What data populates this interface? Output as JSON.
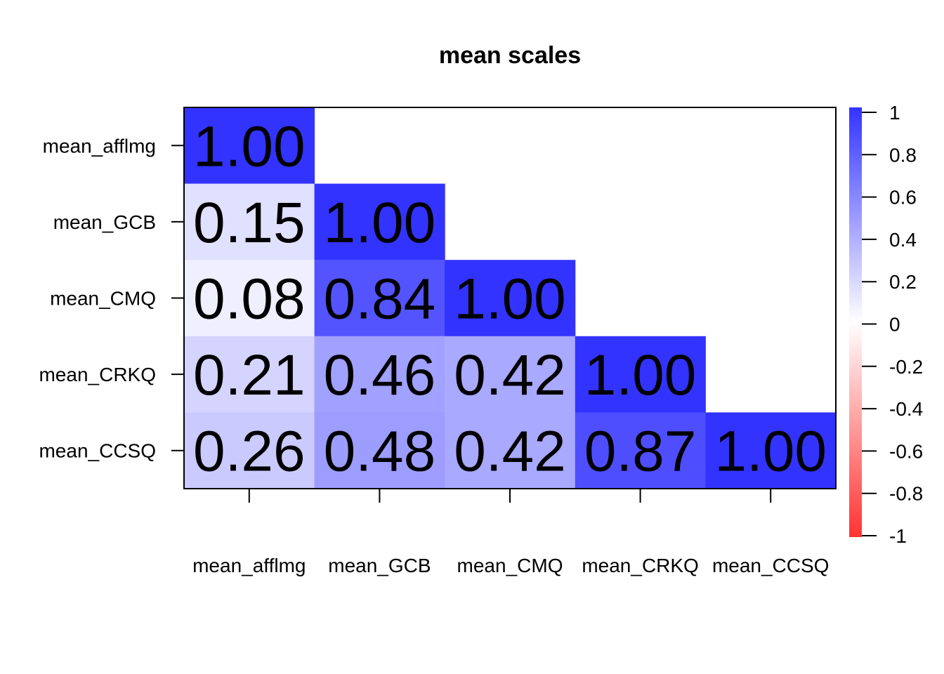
{
  "chart_data": {
    "type": "heatmap",
    "title": "mean scales",
    "variables": [
      "mean_afflmg",
      "mean_GCB",
      "mean_CMQ",
      "mean_CRKQ",
      "mean_CCSQ"
    ],
    "matrix": [
      [
        1.0,
        null,
        null,
        null,
        null
      ],
      [
        0.15,
        1.0,
        null,
        null,
        null
      ],
      [
        0.08,
        0.84,
        1.0,
        null,
        null
      ],
      [
        0.21,
        0.46,
        0.42,
        1.0,
        null
      ],
      [
        0.26,
        0.48,
        0.42,
        0.87,
        1.0
      ]
    ],
    "labels": [
      [
        "1.00",
        "",
        "",
        "",
        ""
      ],
      [
        "0.15",
        "1.00",
        "",
        "",
        ""
      ],
      [
        "0.08",
        "0.84",
        "1.00",
        "",
        ""
      ],
      [
        "0.21",
        "0.46",
        "0.42",
        "1.00",
        ""
      ],
      [
        "0.26",
        "0.48",
        "0.42",
        "0.87",
        "1.00"
      ]
    ],
    "triangle": "lower",
    "color_scale": {
      "min": -1,
      "max": 1,
      "low_color": "#FF3333",
      "mid_color": "#FFFFFF",
      "high_color": "#3333FF",
      "ticks": [
        "1",
        "0.8",
        "0.6",
        "0.4",
        "0.2",
        "0",
        "-0.2",
        "-0.4",
        "-0.6",
        "-0.8",
        "-1"
      ]
    },
    "legend_placement": "right"
  }
}
